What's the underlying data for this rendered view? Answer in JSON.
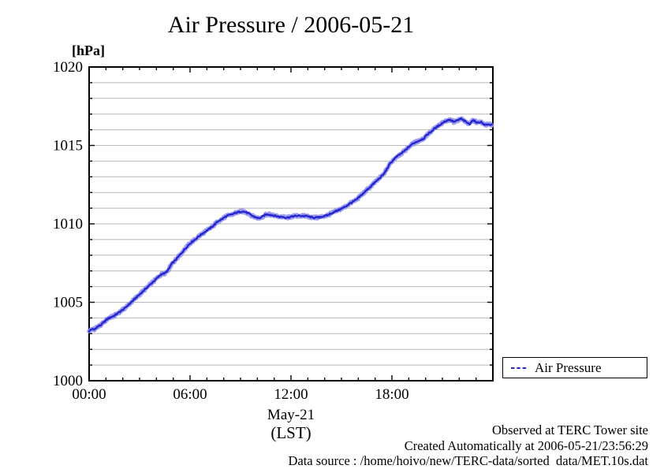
{
  "colors": {
    "curve_core": "#2626d0",
    "curve_halo": "#9a9aec",
    "grid": "#b9b9b9",
    "axis": "#000000",
    "background": "#ffffff"
  },
  "chart_data": {
    "type": "line",
    "title": "Air Pressure / 2006-05-21",
    "y_axis_unit_label": "[hPa]",
    "xlabel_line1": "May-21",
    "xlabel_line2": "(LST)",
    "ylim": [
      1000,
      1020
    ],
    "xlim_hours": [
      0,
      24
    ],
    "ytick_major": [
      1000,
      1005,
      1010,
      1015,
      1020
    ],
    "ytick_minor_step": 1,
    "xtick_major_hours": [
      0,
      6,
      12,
      18,
      24
    ],
    "xtick_major_labels": [
      "00:00",
      "06:00",
      "12:00",
      "18:00",
      ""
    ],
    "xtick_minor_step_hours": 1,
    "grid": "horizontal lines every 1 hPa",
    "legend": {
      "position": "outside right, below plot",
      "entries": [
        {
          "label": "Air Pressure"
        }
      ]
    },
    "series": [
      {
        "name": "Air Pressure",
        "style": "noisy 10-second observations, dark blue core with light blue halo",
        "points": [
          [
            0.0,
            1003.15
          ],
          [
            0.15,
            1003.3
          ],
          [
            0.3,
            1003.25
          ],
          [
            0.5,
            1003.45
          ],
          [
            0.7,
            1003.55
          ],
          [
            0.9,
            1003.75
          ],
          [
            1.1,
            1003.95
          ],
          [
            1.3,
            1004.05
          ],
          [
            1.5,
            1004.15
          ],
          [
            1.7,
            1004.3
          ],
          [
            1.9,
            1004.45
          ],
          [
            2.1,
            1004.6
          ],
          [
            2.3,
            1004.8
          ],
          [
            2.5,
            1005.0
          ],
          [
            2.7,
            1005.2
          ],
          [
            2.9,
            1005.4
          ],
          [
            3.1,
            1005.6
          ],
          [
            3.3,
            1005.8
          ],
          [
            3.5,
            1006.0
          ],
          [
            3.7,
            1006.2
          ],
          [
            3.9,
            1006.4
          ],
          [
            4.1,
            1006.6
          ],
          [
            4.3,
            1006.8
          ],
          [
            4.5,
            1006.85
          ],
          [
            4.7,
            1007.05
          ],
          [
            4.9,
            1007.45
          ],
          [
            5.1,
            1007.65
          ],
          [
            5.3,
            1007.9
          ],
          [
            5.5,
            1008.15
          ],
          [
            5.7,
            1008.4
          ],
          [
            5.9,
            1008.65
          ],
          [
            6.1,
            1008.85
          ],
          [
            6.3,
            1009.0
          ],
          [
            6.5,
            1009.2
          ],
          [
            6.7,
            1009.35
          ],
          [
            6.9,
            1009.5
          ],
          [
            7.1,
            1009.65
          ],
          [
            7.3,
            1009.8
          ],
          [
            7.5,
            1010.0
          ],
          [
            7.7,
            1010.2
          ],
          [
            7.9,
            1010.3
          ],
          [
            8.1,
            1010.45
          ],
          [
            8.3,
            1010.55
          ],
          [
            8.5,
            1010.6
          ],
          [
            8.7,
            1010.7
          ],
          [
            8.9,
            1010.75
          ],
          [
            9.1,
            1010.8
          ],
          [
            9.3,
            1010.75
          ],
          [
            9.5,
            1010.65
          ],
          [
            9.7,
            1010.5
          ],
          [
            9.9,
            1010.42
          ],
          [
            10.1,
            1010.35
          ],
          [
            10.3,
            1010.45
          ],
          [
            10.5,
            1010.6
          ],
          [
            10.7,
            1010.6
          ],
          [
            10.9,
            1010.55
          ],
          [
            11.1,
            1010.5
          ],
          [
            11.3,
            1010.45
          ],
          [
            11.5,
            1010.45
          ],
          [
            11.7,
            1010.4
          ],
          [
            11.9,
            1010.42
          ],
          [
            12.1,
            1010.48
          ],
          [
            12.3,
            1010.5
          ],
          [
            12.5,
            1010.52
          ],
          [
            12.7,
            1010.5
          ],
          [
            12.9,
            1010.5
          ],
          [
            13.1,
            1010.45
          ],
          [
            13.3,
            1010.4
          ],
          [
            13.5,
            1010.4
          ],
          [
            13.7,
            1010.42
          ],
          [
            13.9,
            1010.48
          ],
          [
            14.1,
            1010.52
          ],
          [
            14.3,
            1010.62
          ],
          [
            14.5,
            1010.72
          ],
          [
            14.7,
            1010.82
          ],
          [
            14.9,
            1010.92
          ],
          [
            15.1,
            1011.02
          ],
          [
            15.3,
            1011.15
          ],
          [
            15.5,
            1011.3
          ],
          [
            15.7,
            1011.42
          ],
          [
            15.9,
            1011.55
          ],
          [
            16.1,
            1011.75
          ],
          [
            16.3,
            1011.95
          ],
          [
            16.5,
            1012.15
          ],
          [
            16.7,
            1012.35
          ],
          [
            16.9,
            1012.55
          ],
          [
            17.1,
            1012.75
          ],
          [
            17.3,
            1012.95
          ],
          [
            17.5,
            1013.15
          ],
          [
            17.7,
            1013.5
          ],
          [
            17.9,
            1013.85
          ],
          [
            18.1,
            1014.1
          ],
          [
            18.3,
            1014.3
          ],
          [
            18.5,
            1014.45
          ],
          [
            18.7,
            1014.6
          ],
          [
            18.9,
            1014.8
          ],
          [
            19.1,
            1015.0
          ],
          [
            19.3,
            1015.15
          ],
          [
            19.5,
            1015.25
          ],
          [
            19.7,
            1015.35
          ],
          [
            19.9,
            1015.45
          ],
          [
            20.1,
            1015.7
          ],
          [
            20.3,
            1015.85
          ],
          [
            20.5,
            1016.05
          ],
          [
            20.7,
            1016.2
          ],
          [
            20.9,
            1016.35
          ],
          [
            21.1,
            1016.5
          ],
          [
            21.4,
            1016.65
          ],
          [
            21.7,
            1016.5
          ],
          [
            21.9,
            1016.6
          ],
          [
            22.1,
            1016.7
          ],
          [
            22.4,
            1016.5
          ],
          [
            22.6,
            1016.35
          ],
          [
            22.8,
            1016.6
          ],
          [
            23.1,
            1016.45
          ],
          [
            23.3,
            1016.5
          ],
          [
            23.5,
            1016.3
          ],
          [
            23.7,
            1016.35
          ],
          [
            23.95,
            1016.3
          ]
        ]
      }
    ]
  },
  "annotations": {
    "observed": "Observed at TERC Tower site",
    "created": "Created Automatically at 2006-05-21/23:56:29",
    "data_source": "Data source : /home/hoivo/new/TERC-data/sorted  data/MET.10s.dat"
  }
}
